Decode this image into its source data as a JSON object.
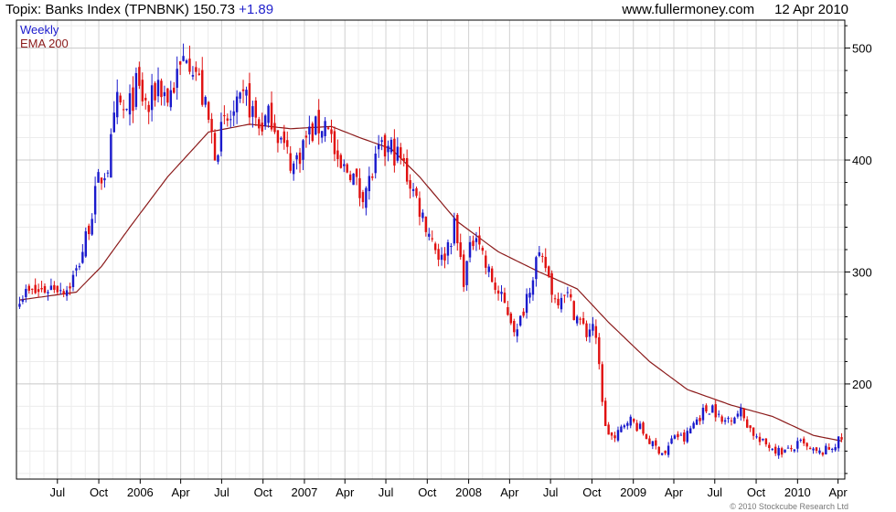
{
  "header": {
    "title": "Topix: Banks Index (TPNBNK)",
    "price": "150.73",
    "change": "+1.89",
    "site": "www.fullermoney.com",
    "date": "12 Apr 2010"
  },
  "copyright": "© 2010 Stockcube Research Ltd",
  "colors": {
    "up": "#1a1acc",
    "down": "#e01010",
    "ema": "#8b1a1a",
    "grid": "#d4d4d4",
    "frame": "#000000"
  },
  "chart_data": {
    "type": "candlestick",
    "frequency": "weekly",
    "legend": [
      {
        "label": "Weekly",
        "color": "#1a1acc"
      },
      {
        "label": "EMA 200",
        "color": "#8b1a1a"
      }
    ],
    "ylim": [
      115,
      525
    ],
    "yticks": [
      200,
      300,
      400,
      500
    ],
    "xticks": [
      "Jul",
      "Oct",
      "2006",
      "Apr",
      "Jul",
      "Oct",
      "2007",
      "Apr",
      "Jul",
      "Oct",
      "2008",
      "Apr",
      "Jul",
      "Oct",
      "2009",
      "Apr",
      "Jul",
      "Oct",
      "2010",
      "Apr"
    ],
    "price_anchors": [
      [
        "2005-04-08",
        280
      ],
      [
        "2005-05-20",
        282
      ],
      [
        "2005-06-24",
        288
      ],
      [
        "2005-07-22",
        285
      ],
      [
        "2005-08-12",
        300
      ],
      [
        "2005-09-02",
        330
      ],
      [
        "2005-09-30",
        380
      ],
      [
        "2005-10-21",
        395
      ],
      [
        "2005-11-11",
        450
      ],
      [
        "2005-12-02",
        440
      ],
      [
        "2005-12-23",
        465
      ],
      [
        "2006-01-20",
        445
      ],
      [
        "2006-02-10",
        470
      ],
      [
        "2006-03-03",
        455
      ],
      [
        "2006-03-31",
        480
      ],
      [
        "2006-04-14",
        500
      ],
      [
        "2006-05-05",
        480
      ],
      [
        "2006-05-26",
        445
      ],
      [
        "2006-06-16",
        410
      ],
      [
        "2006-07-07",
        430
      ],
      [
        "2006-07-28",
        440
      ],
      [
        "2006-08-25",
        455
      ],
      [
        "2006-09-22",
        430
      ],
      [
        "2006-10-20",
        440
      ],
      [
        "2006-11-17",
        410
      ],
      [
        "2006-12-08",
        395
      ],
      [
        "2007-01-05",
        420
      ],
      [
        "2007-02-02",
        430
      ],
      [
        "2007-02-23",
        435
      ],
      [
        "2007-03-16",
        390
      ],
      [
        "2007-04-13",
        392
      ],
      [
        "2007-05-04",
        370
      ],
      [
        "2007-05-25",
        380
      ],
      [
        "2007-06-15",
        405
      ],
      [
        "2007-07-13",
        410
      ],
      [
        "2007-08-03",
        400
      ],
      [
        "2007-08-24",
        380
      ],
      [
        "2007-09-21",
        350
      ],
      [
        "2007-10-12",
        330
      ],
      [
        "2007-11-02",
        310
      ],
      [
        "2007-11-30",
        340
      ],
      [
        "2007-12-21",
        295
      ],
      [
        "2008-01-18",
        340
      ],
      [
        "2008-02-08",
        305
      ],
      [
        "2008-03-07",
        280
      ],
      [
        "2008-03-28",
        265
      ],
      [
        "2008-04-18",
        245
      ],
      [
        "2008-05-09",
        280
      ],
      [
        "2008-05-30",
        310
      ],
      [
        "2008-06-20",
        305
      ],
      [
        "2008-07-11",
        275
      ],
      [
        "2008-08-01",
        285
      ],
      [
        "2008-08-22",
        265
      ],
      [
        "2008-09-19",
        245
      ],
      [
        "2008-10-03",
        255
      ],
      [
        "2008-10-17",
        215
      ],
      [
        "2008-10-31",
        160
      ],
      [
        "2008-11-21",
        150
      ],
      [
        "2008-12-19",
        170
      ],
      [
        "2009-01-16",
        160
      ],
      [
        "2009-02-13",
        145
      ],
      [
        "2009-03-13",
        138
      ],
      [
        "2009-04-03",
        155
      ],
      [
        "2009-04-24",
        150
      ],
      [
        "2009-05-15",
        165
      ],
      [
        "2009-06-05",
        175
      ],
      [
        "2009-06-26",
        180
      ],
      [
        "2009-07-17",
        165
      ],
      [
        "2009-08-07",
        172
      ],
      [
        "2009-08-28",
        175
      ],
      [
        "2009-09-18",
        160
      ],
      [
        "2009-10-09",
        148
      ],
      [
        "2009-10-30",
        145
      ],
      [
        "2009-11-20",
        140
      ],
      [
        "2009-12-11",
        140
      ],
      [
        "2010-01-08",
        147
      ],
      [
        "2010-01-29",
        140
      ],
      [
        "2010-02-19",
        138
      ],
      [
        "2010-03-12",
        142
      ],
      [
        "2010-04-09",
        151
      ]
    ],
    "ema_anchors": [
      [
        "2005-04-08",
        275
      ],
      [
        "2005-08-12",
        282
      ],
      [
        "2005-10-07",
        305
      ],
      [
        "2005-12-09",
        340
      ],
      [
        "2006-03-03",
        385
      ],
      [
        "2006-06-02",
        425
      ],
      [
        "2006-09-01",
        432
      ],
      [
        "2006-12-01",
        428
      ],
      [
        "2007-03-02",
        430
      ],
      [
        "2007-05-04",
        420
      ],
      [
        "2007-07-13",
        410
      ],
      [
        "2007-09-14",
        385
      ],
      [
        "2007-12-07",
        345
      ],
      [
        "2008-03-07",
        318
      ],
      [
        "2008-06-06",
        300
      ],
      [
        "2008-08-29",
        285
      ],
      [
        "2008-11-07",
        255
      ],
      [
        "2009-02-06",
        220
      ],
      [
        "2009-05-01",
        195
      ],
      [
        "2009-08-07",
        181
      ],
      [
        "2009-11-06",
        171
      ],
      [
        "2010-02-05",
        154
      ],
      [
        "2010-04-09",
        149
      ]
    ]
  }
}
